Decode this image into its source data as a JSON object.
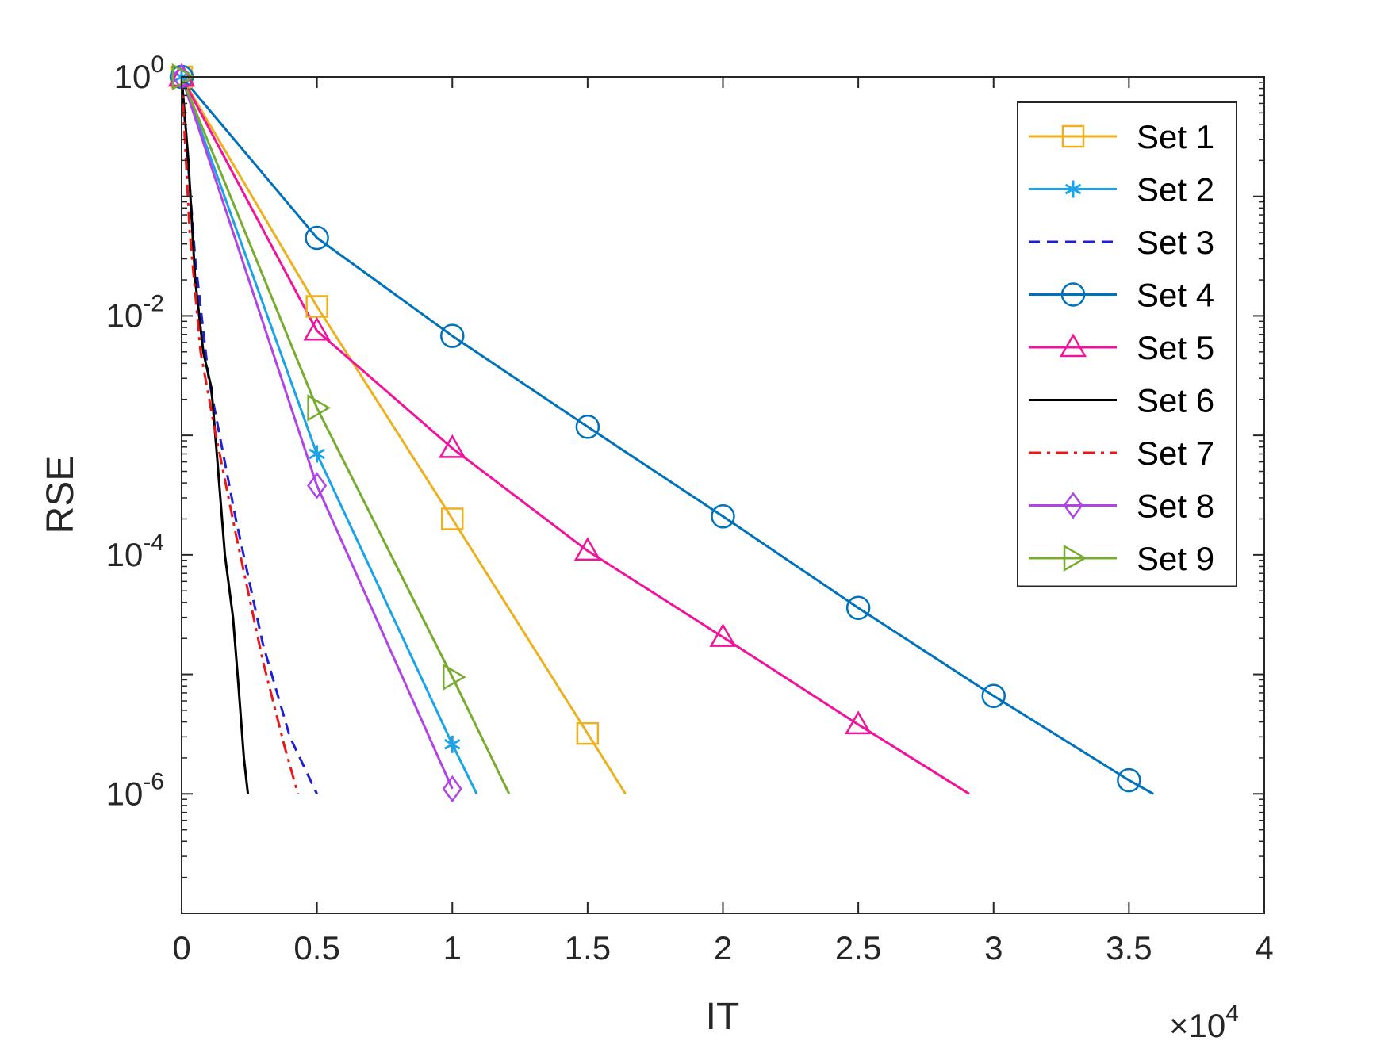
{
  "chart_data": {
    "type": "line",
    "xlabel": "IT",
    "ylabel": "RSE",
    "x_multiplier_label": "×10",
    "x_multiplier_exponent": "4",
    "xlim": [
      0,
      40000
    ],
    "ylim": [
      1e-07,
      1
    ],
    "y_scale": "log",
    "x_ticks": [
      0,
      5000,
      10000,
      15000,
      20000,
      25000,
      30000,
      35000,
      40000
    ],
    "x_tick_labels": [
      "0",
      "0.5",
      "1",
      "1.5",
      "2",
      "2.5",
      "3",
      "3.5",
      "4"
    ],
    "y_ticks": [
      1,
      0.01,
      0.0001,
      1e-06
    ],
    "y_tick_base": "10",
    "y_tick_exponents": [
      "0",
      "-2",
      "-4",
      "-6"
    ],
    "grid": false,
    "legend_position": "top-right",
    "series": [
      {
        "name": "Set 1",
        "color": "#EDB120",
        "marker": "square",
        "dash": "solid",
        "points": [
          [
            0,
            1
          ],
          [
            5000,
            0.012
          ],
          [
            10000,
            0.0002
          ],
          [
            15000,
            3.2e-06
          ],
          [
            16400,
            1e-06
          ]
        ]
      },
      {
        "name": "Set 2",
        "color": "#1AA3E8",
        "marker": "asterisk",
        "dash": "solid",
        "points": [
          [
            0,
            1
          ],
          [
            5000,
            0.0007
          ],
          [
            10000,
            2.6e-06
          ],
          [
            10900,
            1e-06
          ]
        ]
      },
      {
        "name": "Set 3",
        "color": "#1F1FD6",
        "marker": "none",
        "dash": "dashed",
        "points": [
          [
            0,
            1
          ],
          [
            500,
            0.03
          ],
          [
            1000,
            0.003
          ],
          [
            2000,
            0.0002
          ],
          [
            3000,
            1.8e-05
          ],
          [
            4000,
            3e-06
          ],
          [
            5000,
            1e-06
          ]
        ]
      },
      {
        "name": "Set 4",
        "color": "#0072BD",
        "marker": "circle",
        "dash": "solid",
        "points": [
          [
            0,
            1
          ],
          [
            5000,
            0.045
          ],
          [
            10000,
            0.0068
          ],
          [
            15000,
            0.00118
          ],
          [
            20000,
            0.00021
          ],
          [
            25000,
            3.6e-05
          ],
          [
            30000,
            6.6e-06
          ],
          [
            35000,
            1.3e-06
          ],
          [
            35900,
            1e-06
          ]
        ]
      },
      {
        "name": "Set 5",
        "color": "#F0139C",
        "marker": "triangle-up",
        "dash": "solid",
        "points": [
          [
            0,
            1
          ],
          [
            5000,
            0.0075
          ],
          [
            10000,
            0.00078
          ],
          [
            15000,
            0.000108
          ],
          [
            20000,
            2.05e-05
          ],
          [
            25000,
            3.8e-06
          ],
          [
            29100,
            1e-06
          ]
        ]
      },
      {
        "name": "Set 6",
        "color": "#000000",
        "marker": "none",
        "dash": "solid",
        "points": [
          [
            0,
            1
          ],
          [
            250,
            0.2
          ],
          [
            500,
            0.02
          ],
          [
            800,
            0.005
          ],
          [
            1100,
            0.0025
          ],
          [
            1300,
            0.0007
          ],
          [
            1600,
            0.0001
          ],
          [
            1900,
            3e-05
          ],
          [
            2100,
            8e-06
          ],
          [
            2300,
            2e-06
          ],
          [
            2450,
            1e-06
          ]
        ]
      },
      {
        "name": "Set 7",
        "color": "#E81818",
        "marker": "none",
        "dash": "dashdot",
        "points": [
          [
            0,
            1
          ],
          [
            300,
            0.05
          ],
          [
            700,
            0.005
          ],
          [
            1200,
            0.0012
          ],
          [
            2000,
            0.00015
          ],
          [
            3000,
            1.3e-05
          ],
          [
            3800,
            2.5e-06
          ],
          [
            4300,
            1e-06
          ]
        ]
      },
      {
        "name": "Set 8",
        "color": "#B045E6",
        "marker": "diamond",
        "dash": "solid",
        "points": [
          [
            0,
            1
          ],
          [
            5000,
            0.00038
          ],
          [
            10000,
            1.1e-06
          ]
        ]
      },
      {
        "name": "Set 9",
        "color": "#77AC30",
        "marker": "triangle-right",
        "dash": "solid",
        "points": [
          [
            0,
            1
          ],
          [
            5000,
            0.0017
          ],
          [
            10000,
            9.5e-06
          ],
          [
            12100,
            1e-06
          ]
        ]
      }
    ]
  }
}
